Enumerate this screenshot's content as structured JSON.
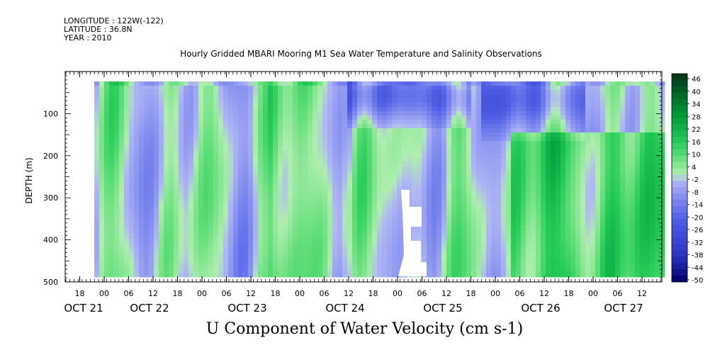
{
  "header": {
    "longitude": "LONGITUDE : 122W(-122)",
    "latitude": "LATITUDE : 36.8N",
    "year": "YEAR : 2010"
  },
  "chart_data": {
    "type": "heatmap",
    "title": "Hourly Gridded MBARI Mooring M1 Sea Water Temperature and Salinity Observations",
    "xlabel": "U Component of Water Velocity (cm s-1)",
    "ylabel": "DEPTH (m)",
    "ylim": [
      500,
      0
    ],
    "y_ticks": [
      100,
      200,
      300,
      400,
      500
    ],
    "x_hour_ticks": [
      "18",
      "00",
      "06",
      "12",
      "18",
      "00",
      "06",
      "12",
      "18",
      "00",
      "06",
      "12",
      "18",
      "00",
      "06",
      "12",
      "18",
      "00",
      "06",
      "12",
      "18",
      "00",
      "06",
      "12"
    ],
    "x_date_labels": [
      "OCT 21",
      "OCT 22",
      "OCT 23",
      "OCT 24",
      "OCT 25",
      "OCT 26",
      "OCT 27"
    ],
    "colorbar": {
      "labels": [
        "46",
        "40",
        "34",
        "28",
        "22",
        "16",
        "10",
        "4",
        "-2",
        "-8",
        "-14",
        "-20",
        "-26",
        "-32",
        "-38",
        "-44",
        "-50"
      ],
      "min": -50,
      "max": 49,
      "colors": {
        "dark_green": "#003300",
        "mid_green": "#00cc44",
        "light_green": "#99ee99",
        "light_blue": "#aab0ee",
        "mid_blue": "#4455dd",
        "dark_blue": "#000066"
      }
    },
    "data_note_regions": [
      {
        "time_range": [
          "Oct 21 18:00",
          "Oct 22 06:00"
        ],
        "depth_range": [
          20,
          80
        ],
        "tendency": "positive"
      },
      {
        "time_range": [
          "Oct 24 12:00",
          "Oct 25 12:00"
        ],
        "depth_range": [
          20,
          120
        ],
        "tendency": "negative"
      },
      {
        "time_range": [
          "Oct 25 18:00",
          "Oct 26 12:00"
        ],
        "depth_range": [
          20,
          150
        ],
        "tendency": "negative"
      },
      {
        "time_range": [
          "Oct 26 06:00",
          "Oct 27 18:00"
        ],
        "depth_range": [
          150,
          480
        ],
        "tendency": "positive"
      }
    ]
  }
}
